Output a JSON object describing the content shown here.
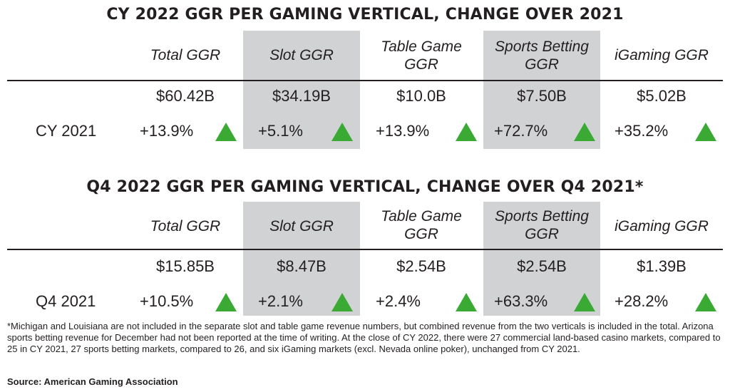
{
  "colors": {
    "up": "#3aaa35",
    "shade": "#d1d2d4",
    "text": "#231f20"
  },
  "chart_data": [
    {
      "type": "table",
      "title": "CY 2022 GGR PER GAMING VERTICAL, CHANGE OVER 2021",
      "columns": [
        "Total GGR",
        "Slot GGR",
        "Table Game GGR",
        "Sports Betting GGR",
        "iGaming GGR"
      ],
      "column_labels": [
        {
          "line1": "Total GGR",
          "line2": ""
        },
        {
          "line1": "Slot GGR",
          "line2": ""
        },
        {
          "line1": "Table Game",
          "line2": "GGR"
        },
        {
          "line1": "Sports Betting",
          "line2": "GGR"
        },
        {
          "line1": "iGaming GGR",
          "line2": ""
        }
      ],
      "values": [
        "$60.42B",
        "$34.19B",
        "$10.0B",
        "$7.50B",
        "$5.02B"
      ],
      "change_label": "CY 2021",
      "changes": [
        "+13.9%",
        "+5.1%",
        "+13.9%",
        "+72.7%",
        "+35.2%"
      ],
      "change_direction": [
        "up",
        "up",
        "up",
        "up",
        "up"
      ]
    },
    {
      "type": "table",
      "title": "Q4 2022 GGR PER GAMING VERTICAL, CHANGE OVER Q4 2021*",
      "columns": [
        "Total GGR",
        "Slot GGR",
        "Table Game GGR",
        "Sports Betting GGR",
        "iGaming GGR"
      ],
      "column_labels": [
        {
          "line1": "Total GGR",
          "line2": ""
        },
        {
          "line1": "Slot GGR",
          "line2": ""
        },
        {
          "line1": "Table Game",
          "line2": "GGR"
        },
        {
          "line1": "Sports Betting",
          "line2": "GGR"
        },
        {
          "line1": "iGaming GGR",
          "line2": ""
        }
      ],
      "values": [
        "$15.85B",
        "$8.47B",
        "$2.54B",
        "$2.54B",
        "$1.39B"
      ],
      "change_label": "Q4 2021",
      "changes": [
        "+10.5%",
        "+2.1%",
        "+2.4%",
        "+63.3%",
        "+28.2%"
      ],
      "change_direction": [
        "up",
        "up",
        "up",
        "up",
        "up"
      ]
    }
  ],
  "footnote": "*Michigan and Louisiana are not included in the separate slot and table game revenue numbers, but combined revenue from the two verticals is included in the total. Arizona sports betting revenue for December had not been reported at the time of writing. At the close of CY 2022, there were 27 commercial land-based casino markets, compared to 25 in CY 2021, 27 sports betting markets, compared to 26, and six iGaming markets (excl. Nevada online poker), unchanged from CY 2021.",
  "source": "Source: American Gaming Association"
}
